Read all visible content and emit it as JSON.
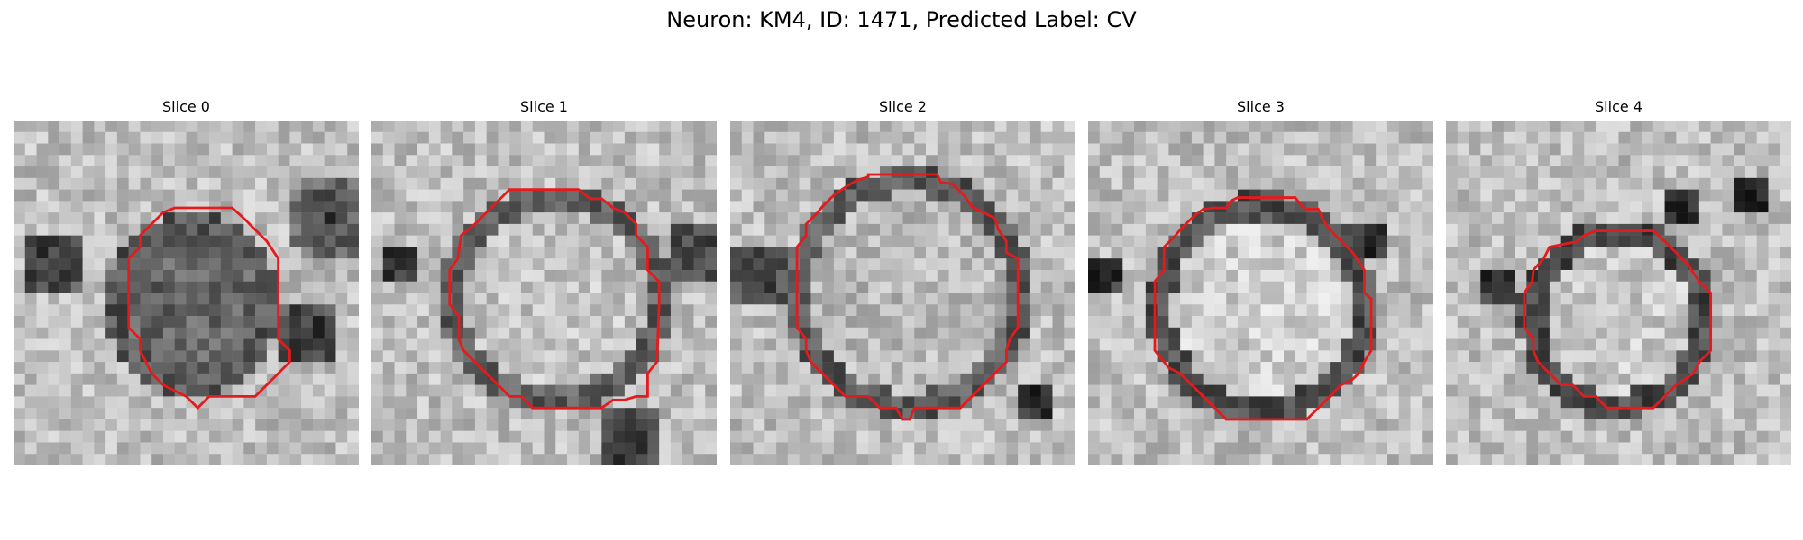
{
  "figure": {
    "title": "Neuron: KM4, ID: 1471, Predicted Label: CV"
  },
  "contour_color": "#e41a1c",
  "panels": [
    {
      "title": "Slice 0"
    },
    {
      "title": "Slice 1"
    },
    {
      "title": "Slice 2"
    },
    {
      "title": "Slice 3"
    },
    {
      "title": "Slice 4"
    }
  ]
}
